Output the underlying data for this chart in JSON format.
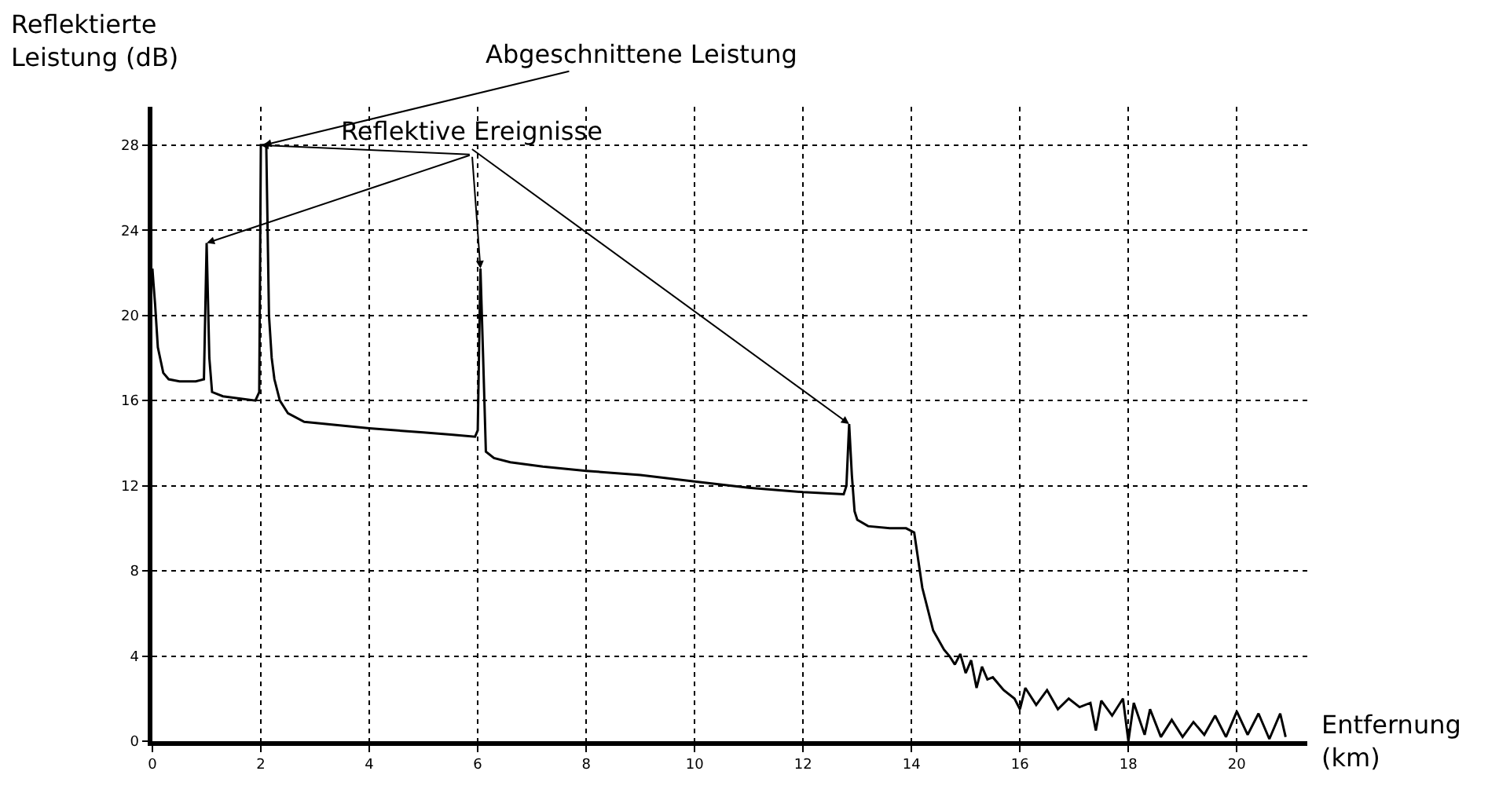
{
  "chart_data": {
    "type": "line",
    "ylabel": "Reflektierte\nLeistung (dB)",
    "xlabel": "Entfernung\n(km)",
    "xlim": [
      0,
      21.3
    ],
    "ylim": [
      0,
      29.8
    ],
    "xticks": [
      0,
      2,
      4,
      6,
      8,
      10,
      12,
      14,
      16,
      18,
      20
    ],
    "yticks": [
      0,
      4,
      8,
      12,
      16,
      20,
      24,
      28
    ],
    "grid": true,
    "marker": "none",
    "line_style": "solid",
    "annotations": [
      {
        "text": "Abgeschnittene Leistung",
        "x": 2.05,
        "y": 28
      },
      {
        "text": "Reflektive Ereignisse",
        "x": 12.85,
        "y": 14.9
      }
    ],
    "series": [
      {
        "color": "#000000",
        "x": [
          0,
          0.02,
          0.05,
          0.1,
          0.2,
          0.3,
          0.5,
          0.8,
          0.95,
          1.0,
          1.05,
          1.1,
          1.3,
          1.6,
          1.9,
          1.97,
          2.0,
          2.1,
          2.15,
          2.2,
          2.25,
          2.35,
          2.5,
          2.8,
          3.2,
          4.0,
          5.0,
          5.5,
          5.95,
          6.0,
          6.05,
          6.1,
          6.15,
          6.3,
          6.6,
          7.2,
          8.0,
          9.0,
          10.0,
          11.0,
          12.0,
          12.75,
          12.8,
          12.85,
          12.9,
          12.95,
          13.0,
          13.2,
          13.6,
          13.9,
          14.05,
          14.2,
          14.4,
          14.6,
          14.7,
          14.8,
          14.9,
          15.0,
          15.1,
          15.2,
          15.3,
          15.4,
          15.5,
          15.7,
          15.9,
          16.0,
          16.1,
          16.3,
          16.5,
          16.7,
          16.9,
          17.1,
          17.3,
          17.4,
          17.5,
          17.7,
          17.9,
          18.0,
          18.1,
          18.3,
          18.4,
          18.6,
          18.8,
          19.0,
          19.2,
          19.4,
          19.6,
          19.8,
          20.0,
          20.2,
          20.4,
          20.6,
          20.8,
          20.9
        ],
        "values": [
          22.2,
          21.5,
          20.5,
          18.5,
          17.3,
          17.0,
          16.9,
          16.9,
          17.0,
          23.4,
          18.0,
          16.4,
          16.2,
          16.1,
          16.0,
          16.4,
          28,
          28,
          20.0,
          18.0,
          17.0,
          16.0,
          15.4,
          15.0,
          14.9,
          14.7,
          14.5,
          14.4,
          14.3,
          14.6,
          22.2,
          18.0,
          13.6,
          13.3,
          13.1,
          12.9,
          12.7,
          12.5,
          12.2,
          11.9,
          11.7,
          11.6,
          12.0,
          14.9,
          12.5,
          10.8,
          10.4,
          10.1,
          10.0,
          10.0,
          9.8,
          7.2,
          5.2,
          4.3,
          4.0,
          3.6,
          4.1,
          3.2,
          3.8,
          2.5,
          3.5,
          2.9,
          3.0,
          2.4,
          2.0,
          1.5,
          2.5,
          1.7,
          2.4,
          1.5,
          2.0,
          1.6,
          1.8,
          0.5,
          1.9,
          1.2,
          2.0,
          0.0,
          1.8,
          0.3,
          1.5,
          0.2,
          1.0,
          0.2,
          0.9,
          0.3,
          1.2,
          0.2,
          1.4,
          0.3,
          1.3,
          0.1,
          1.3,
          0.2
        ]
      }
    ]
  }
}
